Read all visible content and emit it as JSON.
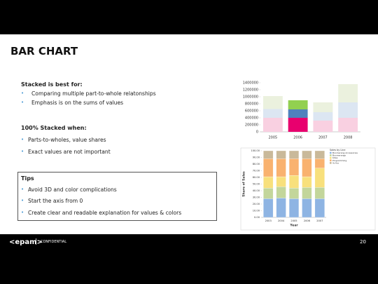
{
  "header": {
    "title": "BAR CHART"
  },
  "sections": [
    {
      "heading": "Stacked is best for:",
      "bullets": [
        "Comparing multiple part-to-whole relatonships",
        "Emphasis is on the sums of values"
      ]
    },
    {
      "heading": "100% Stacked when:",
      "bullets": [
        "Parts-to-wholes, value shares",
        "Exact values are not important"
      ]
    }
  ],
  "tips": {
    "heading": "Tips",
    "bullets": [
      "Avoid 3D and color complications",
      "Start the axis from 0",
      "Create clear and readable explanation for values & colors"
    ]
  },
  "charts": [
    {
      "type": "stacked-bar",
      "categories": [
        "2005",
        "2006",
        "2007",
        "2008"
      ],
      "highlight_index": 1,
      "series": [
        {
          "color": "#f9d0e1",
          "highlight_color": "#e8006e",
          "values": [
            400000,
            400000,
            320000,
            400000
          ]
        },
        {
          "color": "#dce6f2",
          "highlight_color": "#4f81bd",
          "values": [
            250000,
            240000,
            240000,
            440000
          ]
        },
        {
          "color": "#ebf1de",
          "highlight_color": "#92d050",
          "values": [
            370000,
            260000,
            280000,
            520000
          ]
        }
      ],
      "ylim": [
        0,
        1400000
      ],
      "yticks": [
        0,
        200000,
        400000,
        600000,
        800000,
        1000000,
        1200000,
        1400000
      ]
    },
    {
      "type": "stacked-bar-100",
      "y_label": "Share of Sales",
      "x_label": "Year",
      "legend_title": "Sales by Line",
      "categories": [
        "2003",
        "2004",
        "2005",
        "2006",
        "2007"
      ],
      "series": [
        {
          "name": "Boomerang Accessories",
          "color": "#8eb4e3",
          "values": [
            28,
            29,
            28,
            28,
            28
          ]
        },
        {
          "name": "Boomerangs",
          "color": "#c3d69b",
          "values": [
            16,
            17,
            16,
            17,
            17
          ]
        },
        {
          "name": "Kites",
          "color": "#f8e07c",
          "values": [
            17,
            15,
            19,
            16,
            29
          ]
        },
        {
          "name": "Programming",
          "color": "#f9b26f",
          "values": [
            27,
            27,
            25,
            27,
            14
          ]
        },
        {
          "name": "Yo-Yos",
          "color": "#c9b99a",
          "values": [
            12,
            12,
            12,
            12,
            12
          ]
        }
      ],
      "ylim": [
        0,
        100
      ],
      "yticks": [
        {
          "value": 0,
          "label": "0.00"
        },
        {
          "value": 10,
          "label": "10.00"
        },
        {
          "value": 20,
          "label": "20.00"
        },
        {
          "value": 30,
          "label": "30.00"
        },
        {
          "value": 40,
          "label": "40.00"
        },
        {
          "value": 50,
          "label": "50.00"
        },
        {
          "value": 60,
          "label": "60.00"
        },
        {
          "value": 70,
          "label": "70.00"
        },
        {
          "value": 80,
          "label": "80.00"
        },
        {
          "value": 90,
          "label": "90.00"
        },
        {
          "value": 100,
          "label": "100.00"
        }
      ]
    }
  ],
  "footer": {
    "logo": "<epam>",
    "separator": "|",
    "label": "CONFIDENTIAL",
    "page": "20"
  }
}
